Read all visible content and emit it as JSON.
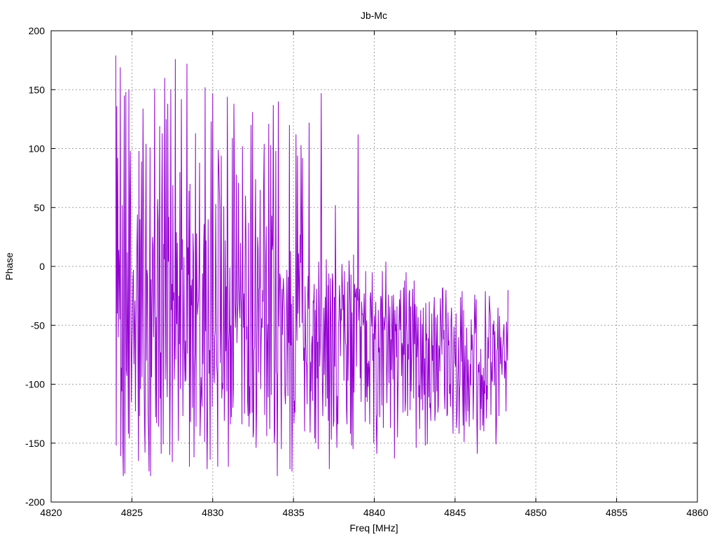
{
  "chart_data": {
    "type": "line",
    "title": "Jb-Mc",
    "xlabel": "Freq [MHz]",
    "ylabel": "Phase",
    "xlim": [
      4820,
      4860
    ],
    "ylim": [
      -200,
      200
    ],
    "xticks": [
      4820,
      4825,
      4830,
      4835,
      4840,
      4845,
      4850,
      4855,
      4860
    ],
    "yticks": [
      -200,
      -150,
      -100,
      -50,
      0,
      50,
      100,
      150,
      200
    ],
    "xtick_labels": [
      "4820",
      "4825",
      "4830",
      "4835",
      "4840",
      "4845",
      "4850",
      "4855",
      "4860"
    ],
    "ytick_labels": [
      "-200",
      "-150",
      "-100",
      "-50",
      "0",
      "50",
      "100",
      "150",
      "200"
    ],
    "grid": true,
    "series": [
      {
        "color": "#9400d3",
        "x_start": 4824.0,
        "x_step": 0.03125,
        "values": [
          179,
          -152,
          136,
          -40,
          92,
          -60,
          14,
          -3,
          -45,
          169,
          -161,
          -86,
          -106,
          52,
          -152,
          -178,
          37,
          145,
          -176,
          -34,
          148,
          -88,
          -93,
          12,
          -61,
          -142,
          150,
          -146,
          58,
          98,
          -17,
          -115,
          -72,
          -52,
          -10,
          -3,
          -83,
          -49,
          -29,
          -123,
          -54,
          -20,
          20,
          44,
          -82,
          -165,
          98,
          -127,
          40,
          -104,
          17,
          89,
          -94,
          -20,
          134,
          44,
          -86,
          -135,
          -158,
          11,
          104,
          -80,
          -3,
          -9,
          -124,
          -145,
          -174,
          -24,
          101,
          -178,
          -11,
          -94,
          -29,
          25,
          17,
          -60,
          -23,
          151,
          -45,
          -128,
          -43,
          -133,
          1,
          57,
          38,
          -136,
          -16,
          119,
          -112,
          -73,
          -159,
          47,
          113,
          -32,
          -151,
          19,
          6,
          160,
          -96,
          -5,
          125,
          -80,
          -111,
          138,
          4,
          42,
          -27,
          -160,
          -96,
          150,
          -37,
          -15,
          -166,
          69,
          -29,
          -22,
          -96,
          -65,
          176,
          -79,
          29,
          -49,
          20,
          -64,
          -148,
          -25,
          -66,
          80,
          -104,
          -21,
          142,
          -3,
          23,
          -127,
          -58,
          8,
          -70,
          -98,
          -63,
          -97,
          -33,
          172,
          -74,
          16,
          -7,
          64,
          -170,
          70,
          -132,
          -16,
          -33,
          -11,
          -120,
          28,
          11,
          -162,
          -86,
          -73,
          113,
          -136,
          28,
          -17,
          -41,
          -33,
          -29,
          -1,
          88,
          -144,
          -122,
          -94,
          -109,
          -119,
          -6,
          -83,
          13,
          36,
          -149,
          152,
          -55,
          22,
          -117,
          -172,
          -121,
          40,
          -37,
          -91,
          -71,
          -164,
          20,
          123,
          -27,
          -119,
          147,
          2,
          -91,
          -99,
          -61,
          -55,
          53,
          -25,
          -84,
          -93,
          -170,
          99,
          86,
          70,
          52,
          -82,
          -53,
          94,
          -112,
          -99,
          -104,
          -50,
          51,
          -131,
          -89,
          22,
          -72,
          -17,
          -106,
          144,
          28,
          -170,
          -64,
          -54,
          -1,
          -134,
          -50,
          -128,
          -37,
          109,
          -120,
          -104,
          138,
          80,
          -33,
          -52,
          -26,
          78,
          -65,
          -43,
          -31,
          71,
          -18,
          -36,
          -44,
          20,
          -26,
          -37,
          -134,
          102,
          -19,
          -52,
          -23,
          -125,
          -4,
          60,
          24,
          -62,
          -51,
          -114,
          -127,
          37,
          -136,
          -102,
          -125,
          26,
          120,
          -16,
          -124,
          131,
          -145,
          -140,
          -71,
          -68,
          24,
          74,
          -154,
          -124,
          -44,
          25,
          15,
          -90,
          -19,
          -18,
          65,
          -104,
          -64,
          -44,
          -52,
          -20,
          -30,
          71,
          104,
          -126,
          -60,
          9,
          34,
          -144,
          -65,
          -49,
          -111,
          121,
          -21,
          -138,
          -48,
          103,
          -109,
          43,
          14,
          19,
          137,
          22,
          -150,
          -141,
          -57,
          98,
          -90,
          -91,
          -178,
          -78,
          140,
          -51,
          -25,
          -6,
          -10,
          -87,
          -155,
          -19,
          -58,
          -25,
          -10,
          -24,
          -37,
          -107,
          -117,
          -98,
          -47,
          -3,
          -49,
          -110,
          -9,
          -65,
          120,
          -172,
          13,
          -67,
          -32,
          -174,
          -122,
          -25,
          -68,
          -133,
          -114,
          -124,
          -68,
          112,
          -43,
          -63,
          94,
          -40,
          11,
          -12,
          -52,
          27,
          3,
          103,
          33,
          -48,
          92,
          -38,
          -80,
          -69,
          -140,
          -17,
          -61,
          -81,
          -84,
          -117,
          -29,
          -8,
          -36,
          122,
          -100,
          -141,
          -81,
          -106,
          -67,
          -59,
          -114,
          -29,
          -31,
          -15,
          -146,
          -37,
          -150,
          -49,
          -19,
          -95,
          -64,
          -155,
          4,
          -33,
          -85,
          -69,
          26,
          147,
          -29,
          -92,
          -127,
          -94,
          -35,
          -92,
          -48,
          -26,
          -119,
          6,
          -51,
          -112,
          -16,
          -131,
          -6,
          -172,
          -93,
          -10,
          -42,
          -147,
          -86,
          -6,
          -13,
          -136,
          -131,
          -26,
          -85,
          52,
          -16,
          -117,
          -154,
          -110,
          -134,
          -51,
          -44,
          -16,
          -30,
          -76,
          -36,
          -46,
          2,
          -16,
          -37,
          -24,
          -97,
          -4,
          -49,
          -65,
          -67,
          -121,
          -134,
          -13,
          -97,
          -64,
          5,
          -11,
          -33,
          -142,
          -7,
          -152,
          -39,
          -90,
          -155,
          10,
          -107,
          -15,
          -26,
          -26,
          -19,
          -85,
          -18,
          -29,
          112,
          -46,
          -30,
          -19,
          -95,
          -51,
          -115,
          -30,
          -41,
          -40,
          -50,
          -47,
          -23,
          -45,
          -132,
          -4,
          -111,
          -46,
          -115,
          -82,
          -102,
          -80,
          -87,
          -134,
          -27,
          -22,
          -41,
          -51,
          -5,
          -80,
          -57,
          -150,
          -42,
          -62,
          -48,
          -30,
          -128,
          -159,
          -127,
          -126,
          -37,
          -73,
          -69,
          -128,
          -52,
          -25,
          -28,
          -118,
          -4,
          -54,
          -137,
          -43,
          -54,
          -48,
          -40,
          4,
          -73,
          -116,
          -79,
          -49,
          -24,
          -99,
          -50,
          -34,
          -137,
          -62,
          -88,
          -25,
          -53,
          -96,
          -24,
          -44,
          -163,
          -37,
          -55,
          -49,
          -77,
          -34,
          -145,
          -105,
          -87,
          -47,
          -28,
          -54,
          -20,
          -53,
          -93,
          -65,
          -68,
          -124,
          -18,
          -75,
          -12,
          -123,
          -115,
          -5,
          -48,
          -57,
          -127,
          -66,
          -79,
          -23,
          -20,
          -122,
          -34,
          -106,
          -83,
          -58,
          -19,
          -45,
          -112,
          -12,
          -66,
          -32,
          -57,
          -154,
          -34,
          -77,
          -64,
          -43,
          -111,
          -101,
          -138,
          -66,
          -37,
          -113,
          -91,
          -49,
          -122,
          -35,
          -86,
          -109,
          -78,
          -152,
          -31,
          -63,
          -57,
          -151,
          -96,
          -61,
          -111,
          -30,
          -120,
          -116,
          -131,
          -76,
          -40,
          -80,
          -67,
          -107,
          -39,
          -26,
          -131,
          -123,
          -43,
          -64,
          -106,
          -41,
          -124,
          -118,
          -67,
          -71,
          -89,
          -27,
          -42,
          -59,
          -75,
          -19,
          -18,
          -62,
          -54,
          -108,
          -121,
          -45,
          -20,
          -58,
          -127,
          -125,
          -39,
          -67,
          -63,
          -108,
          -100,
          -119,
          -46,
          -35,
          -60,
          -108,
          -142,
          -78,
          -51,
          -69,
          -82,
          -85,
          -40,
          -137,
          -127,
          -102,
          -84,
          -60,
          -142,
          -106,
          -97,
          -26,
          -55,
          -81,
          -21,
          -106,
          -135,
          -37,
          -149,
          -87,
          -67,
          -116,
          -132,
          -52,
          -84,
          -123,
          -79,
          -96,
          -136,
          -111,
          -83,
          -101,
          -45,
          -71,
          -58,
          -75,
          -130,
          -99,
          -52,
          -24,
          -57,
          -49,
          -28,
          -127,
          -159,
          -110,
          -83,
          -90,
          -81,
          -100,
          -139,
          -70,
          -121,
          -92,
          -94,
          -135,
          -86,
          -140,
          -97,
          -108,
          -21,
          -59,
          -129,
          -101,
          -113,
          -60,
          -78,
          -58,
          -25,
          -36,
          -42,
          -126,
          -81,
          -95,
          -98,
          -49,
          -58,
          -46,
          -101,
          -55,
          -92,
          -151,
          -134,
          -71,
          -69,
          -35,
          -81,
          -127,
          -42,
          -62,
          -83,
          -60,
          -81,
          -92,
          -70,
          -65,
          -54,
          -49,
          -95,
          -80,
          -82,
          -123,
          -47,
          -61,
          -80,
          -20
        ]
      }
    ]
  }
}
